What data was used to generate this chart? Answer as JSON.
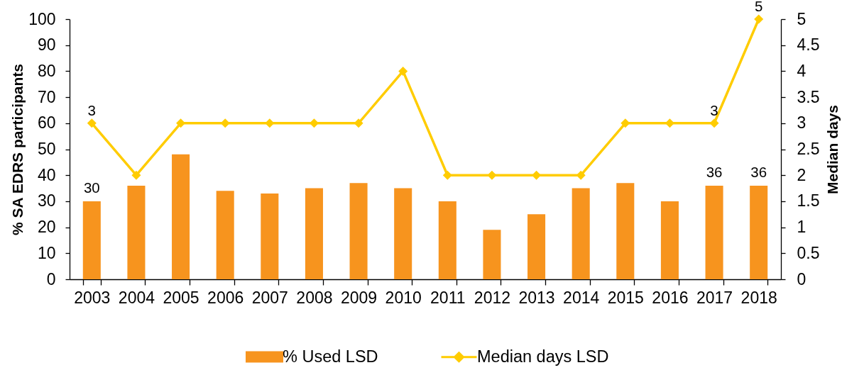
{
  "chart_data": {
    "type": "bar",
    "categories": [
      "2003",
      "2004",
      "2005",
      "2006",
      "2007",
      "2008",
      "2009",
      "2010",
      "2011",
      "2012",
      "2013",
      "2014",
      "2015",
      "2016",
      "2017",
      "2018"
    ],
    "series": [
      {
        "name": "% Used LSD",
        "color": "#f7941e",
        "values": [
          30,
          36,
          48,
          34,
          33,
          35,
          37,
          35,
          30,
          19,
          25,
          35,
          37,
          30,
          36,
          36
        ],
        "value_labels": [
          "30",
          null,
          null,
          null,
          null,
          null,
          null,
          null,
          null,
          null,
          null,
          null,
          null,
          null,
          "36",
          "36"
        ]
      },
      {
        "name": "Median days LSD",
        "type": "line",
        "axis": "y2",
        "color": "#ffcc00",
        "values": [
          3,
          2,
          3,
          3,
          3,
          3,
          3,
          4,
          2,
          2,
          2,
          2,
          3,
          3,
          3,
          5
        ],
        "value_labels": [
          "3",
          null,
          null,
          null,
          null,
          null,
          null,
          null,
          null,
          null,
          null,
          null,
          null,
          null,
          "3",
          "5"
        ]
      }
    ],
    "ylabel": "% SA EDRS participants",
    "y2label": "Median days",
    "ylim": [
      0,
      100
    ],
    "yticks": [
      0,
      10,
      20,
      30,
      40,
      50,
      60,
      70,
      80,
      90,
      100
    ],
    "y2lim": [
      0,
      5
    ],
    "y2ticks": [
      0,
      0.5,
      1,
      1.5,
      2,
      2.5,
      3,
      3.5,
      4,
      4.5,
      5
    ],
    "grid": false,
    "legend": "bottom",
    "marker": "diamond"
  }
}
